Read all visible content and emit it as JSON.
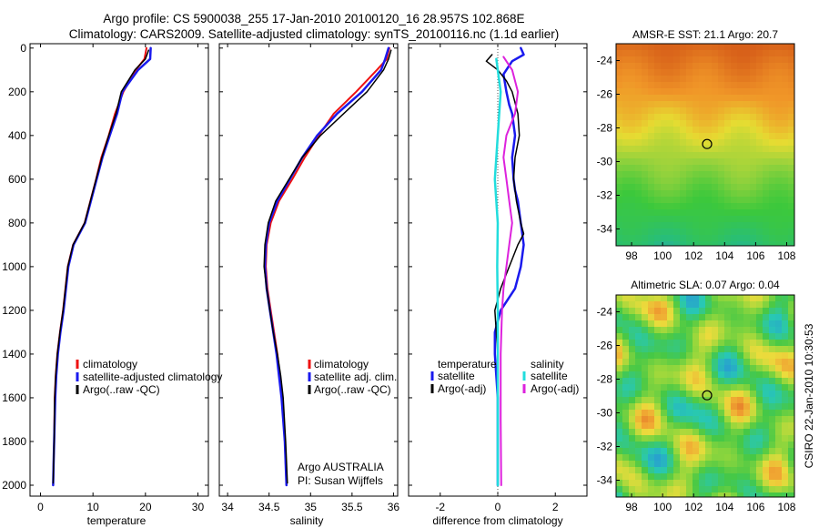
{
  "header": {
    "line1": "Argo profile: CS 5900038_255 17-Jan-2010 20100120_16 28.957S 102.868E",
    "line2": "Climatology: CARS2009. Satellite-adjusted climatology: synTS_20100116.nc (1.1d earlier)"
  },
  "side_label": "CSIRO 22-Jan-2010 10:30:53",
  "colors": {
    "red": "#ee1111",
    "blue": "#1a1aee",
    "black": "#000000",
    "cyan": "#22dddd",
    "magenta": "#dd22dd"
  },
  "chart_data": [
    {
      "type": "line",
      "id": "temperature",
      "xlabel": "temperature",
      "xlim": [
        -2,
        32
      ],
      "ylim": [
        2050,
        -20
      ],
      "xticks": [
        0,
        10,
        20,
        30
      ],
      "yticks": [
        0,
        200,
        400,
        600,
        800,
        1000,
        1200,
        1400,
        1600,
        1800,
        2000
      ],
      "legend": [
        "climatology",
        "satellite-adjusted climatology",
        "Argo(..raw -QC)"
      ],
      "series": [
        {
          "name": "climatology",
          "color": "red",
          "width": 2,
          "x": [
            20.2,
            19.8,
            18.2,
            15.8,
            14.2,
            13.0,
            11.6,
            10.6,
            8.4,
            6.2,
            5.2,
            4.3,
            3.7,
            3.2,
            2.9,
            2.7,
            2.6,
            2.5,
            2.4
          ],
          "y": [
            0,
            50,
            100,
            200,
            300,
            400,
            500,
            600,
            800,
            900,
            1000,
            1200,
            1300,
            1400,
            1500,
            1600,
            1800,
            1900,
            2000
          ]
        },
        {
          "name": "satellite-adjusted climatology",
          "color": "blue",
          "width": 2.5,
          "x": [
            21.0,
            20.9,
            18.6,
            15.6,
            14.6,
            13.2,
            11.8,
            10.7,
            8.5,
            6.3,
            5.3,
            4.4,
            3.8,
            3.3,
            3.0,
            2.8,
            2.6,
            2.5,
            2.4
          ],
          "y": [
            0,
            50,
            100,
            200,
            300,
            400,
            500,
            600,
            800,
            900,
            1000,
            1200,
            1300,
            1400,
            1500,
            1600,
            1800,
            1900,
            2000
          ]
        },
        {
          "name": "Argo(..raw -QC)",
          "color": "black",
          "width": 1.5,
          "x": [
            20.6,
            20.0,
            18.0,
            15.4,
            14.4,
            13.0,
            11.7,
            10.6,
            8.4,
            6.2,
            5.2,
            4.3,
            3.7,
            3.2,
            2.9,
            2.7,
            2.6,
            2.5,
            2.4
          ],
          "y": [
            10,
            50,
            100,
            200,
            300,
            400,
            500,
            600,
            800,
            900,
            1000,
            1200,
            1300,
            1400,
            1500,
            1600,
            1800,
            1900,
            1990
          ]
        }
      ]
    },
    {
      "type": "line",
      "id": "salinity",
      "xlabel": "salinity",
      "xlim": [
        33.9,
        36.05
      ],
      "ylim": [
        2050,
        -20
      ],
      "xticks": [
        34,
        34.5,
        35,
        35.5,
        36
      ],
      "yticks": [
        0,
        200,
        400,
        600,
        800,
        1000,
        1200,
        1400,
        1600,
        1800,
        2000
      ],
      "legend": [
        "climatology",
        "satellite adj. clim.",
        "Argo(..raw -QC)"
      ],
      "annotations": [
        "Argo AUSTRALIA",
        "PI: Susan Wijffels"
      ],
      "series": [
        {
          "name": "climatology",
          "color": "red",
          "width": 2,
          "x": [
            35.95,
            35.92,
            35.8,
            35.55,
            35.28,
            35.1,
            34.93,
            34.78,
            34.62,
            34.52,
            34.47,
            34.46,
            34.48,
            34.52,
            34.56,
            34.6,
            34.63,
            34.66,
            34.69,
            34.71
          ],
          "y": [
            0,
            50,
            100,
            200,
            300,
            400,
            500,
            600,
            700,
            800,
            900,
            1000,
            1100,
            1200,
            1300,
            1400,
            1500,
            1600,
            1800,
            2000
          ]
        },
        {
          "name": "satellite adj. clim.",
          "color": "blue",
          "width": 2.5,
          "x": [
            35.94,
            35.9,
            35.85,
            35.62,
            35.32,
            35.08,
            34.9,
            34.75,
            34.6,
            34.5,
            34.46,
            34.45,
            34.47,
            34.51,
            34.55,
            34.59,
            34.62,
            34.65,
            34.69,
            34.71
          ],
          "y": [
            0,
            50,
            100,
            200,
            300,
            400,
            500,
            600,
            700,
            800,
            900,
            1000,
            1100,
            1200,
            1300,
            1400,
            1500,
            1600,
            1800,
            2000
          ]
        },
        {
          "name": "Argo(..raw -QC)",
          "color": "black",
          "width": 1.5,
          "x": [
            35.97,
            35.94,
            35.88,
            35.68,
            35.4,
            35.12,
            34.9,
            34.74,
            34.58,
            34.49,
            34.45,
            34.44,
            34.47,
            34.51,
            34.55,
            34.6,
            34.64,
            34.67,
            34.7,
            34.72
          ],
          "y": [
            10,
            50,
            100,
            200,
            300,
            400,
            500,
            600,
            700,
            800,
            900,
            1000,
            1100,
            1200,
            1300,
            1400,
            1500,
            1600,
            1800,
            1990
          ]
        }
      ]
    },
    {
      "type": "line",
      "id": "difference",
      "xlabel": "difference from climatology",
      "xlim": [
        -3.1,
        3.1
      ],
      "ylim": [
        2050,
        -20
      ],
      "xticks": [
        -2,
        0,
        2
      ],
      "yticks": [
        0,
        200,
        400,
        600,
        800,
        1000,
        1200,
        1400,
        1600,
        1800,
        2000
      ],
      "legend_headers": [
        "temperature",
        "salinity"
      ],
      "legend": [
        {
          "label": "satellite",
          "color": "blue",
          "group": "temperature"
        },
        {
          "label": "Argo(-adj)",
          "color": "black",
          "group": "temperature"
        },
        {
          "label": "satellite",
          "color": "cyan",
          "group": "salinity"
        },
        {
          "label": "Argo(-adj)",
          "color": "magenta",
          "group": "salinity"
        }
      ],
      "series": [
        {
          "name": "temperature satellite",
          "color": "blue",
          "width": 2.5,
          "x": [
            0.8,
            0.9,
            0.5,
            0.2,
            0.3,
            0.4,
            0.5,
            0.6,
            0.5,
            0.55,
            0.6,
            0.7,
            0.8,
            0.9,
            0.8,
            0.6,
            0.1,
            -0.1,
            -0.1,
            -0.05,
            0.0,
            0.0,
            0.0
          ],
          "y": [
            0,
            30,
            60,
            120,
            200,
            260,
            300,
            400,
            500,
            600,
            650,
            700,
            800,
            900,
            1000,
            1100,
            1200,
            1300,
            1400,
            1500,
            1600,
            1800,
            2000
          ]
        },
        {
          "name": "temperature Argo(-adj)",
          "color": "black",
          "width": 1.5,
          "x": [
            -0.2,
            -0.4,
            0.0,
            0.3,
            0.5,
            0.6,
            0.7,
            0.75,
            0.6,
            0.55,
            0.65,
            0.8,
            0.9,
            0.7,
            0.4,
            0.1,
            -0.1,
            -0.05,
            0.0,
            0.0,
            0.0,
            0.0
          ],
          "y": [
            30,
            60,
            100,
            150,
            200,
            250,
            300,
            400,
            500,
            600,
            700,
            800,
            850,
            900,
            1000,
            1100,
            1200,
            1300,
            1400,
            1600,
            1800,
            2000
          ]
        },
        {
          "name": "salinity satellite",
          "color": "cyan",
          "width": 2.5,
          "x": [
            -0.05,
            0.0,
            0.1,
            0.05,
            0.0,
            -0.05,
            -0.1,
            -0.05,
            0.0,
            -0.02,
            0.0,
            0.0
          ],
          "y": [
            50,
            100,
            200,
            300,
            400,
            500,
            600,
            700,
            800,
            1000,
            1200,
            2000
          ]
        },
        {
          "name": "salinity Argo(-adj)",
          "color": "magenta",
          "width": 2,
          "x": [
            0.2,
            0.5,
            0.7,
            0.6,
            0.3,
            0.2,
            0.3,
            0.4,
            0.5,
            0.4,
            0.3,
            0.2,
            0.15,
            0.1,
            0.1,
            0.12
          ],
          "y": [
            40,
            100,
            200,
            300,
            400,
            500,
            600,
            700,
            800,
            900,
            1000,
            1100,
            1200,
            1400,
            1700,
            2000
          ]
        }
      ]
    },
    {
      "type": "heatmap",
      "id": "sst_map",
      "title": "AMSR-E SST: 21.1 Argo: 20.7",
      "xlim": [
        97,
        108.5
      ],
      "ylim": [
        -35,
        -23
      ],
      "xticks": [
        98,
        100,
        102,
        104,
        106,
        108
      ],
      "yticks": [
        -24,
        -26,
        -28,
        -30,
        -32,
        -34
      ],
      "marker": {
        "lon": 102.868,
        "lat": -28.957
      }
    },
    {
      "type": "heatmap",
      "id": "sla_map",
      "title": "Altimetric SLA: 0.07 Argo: 0.04",
      "xlim": [
        97,
        108.5
      ],
      "ylim": [
        -35,
        -23
      ],
      "xticks": [
        98,
        100,
        102,
        104,
        106,
        108
      ],
      "yticks": [
        -24,
        -26,
        -28,
        -30,
        -32,
        -34
      ],
      "marker": {
        "lon": 102.868,
        "lat": -28.957
      }
    }
  ]
}
